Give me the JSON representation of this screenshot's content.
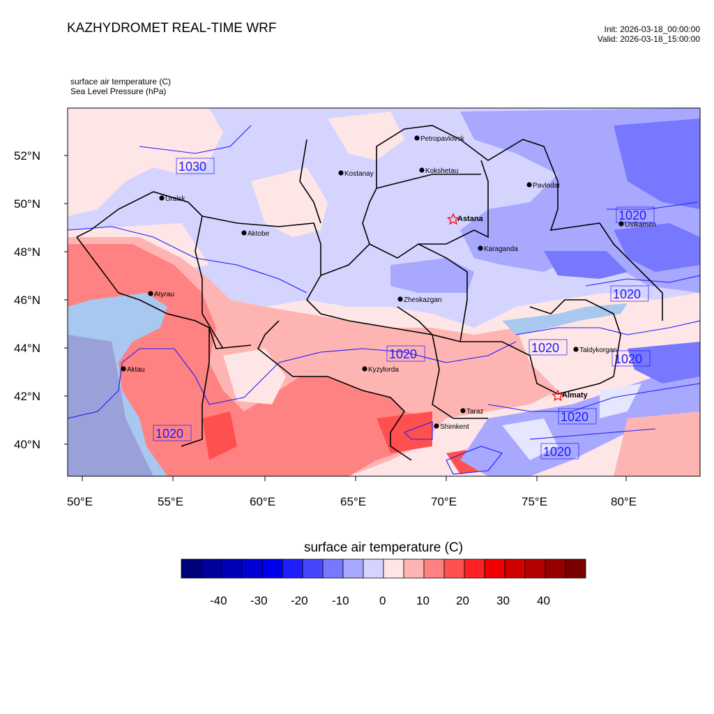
{
  "header": {
    "title": "KAZHYDROMET REAL-TIME WRF",
    "init": "Init: 2026-03-18_00:00:00",
    "valid": "Valid: 2026-03-18_15:00:00",
    "field1": "surface air temperature   (C)",
    "field2": "Sea Level Pressure   (hPa)"
  },
  "axes": {
    "lat_labels": [
      "52°N",
      "50°N",
      "48°N",
      "46°N",
      "44°N",
      "42°N",
      "40°N"
    ],
    "lon_labels": [
      "50°E",
      "55°E",
      "60°E",
      "65°E",
      "70°E",
      "75°E",
      "80°E"
    ]
  },
  "cities": [
    {
      "name": "Petropavlovsk",
      "bold": false
    },
    {
      "name": "Kostanay",
      "bold": false
    },
    {
      "name": "Kokshetau",
      "bold": false
    },
    {
      "name": "Uralsk",
      "bold": false
    },
    {
      "name": "Pavlodar",
      "bold": false
    },
    {
      "name": "Astana",
      "bold": true,
      "capital": true
    },
    {
      "name": "Ustkamen",
      "bold": false
    },
    {
      "name": "Aktobe",
      "bold": false
    },
    {
      "name": "Karaganda",
      "bold": false
    },
    {
      "name": "Atyrau",
      "bold": false
    },
    {
      "name": "Zheskazgan",
      "bold": false
    },
    {
      "name": "Taldykorgan",
      "bold": false
    },
    {
      "name": "Aktau",
      "bold": false
    },
    {
      "name": "Kyzylorda",
      "bold": false
    },
    {
      "name": "Almaty",
      "bold": true,
      "capital": true
    },
    {
      "name": "Taraz",
      "bold": false
    },
    {
      "name": "Shimkent",
      "bold": false
    }
  ],
  "isobar_labels": [
    "1030",
    "1020",
    "1020",
    "1020",
    "1020",
    "1020",
    "1020",
    "1020",
    "1020"
  ],
  "colorbar": {
    "title": "surface air temperature  (C)",
    "ticks": [
      "-40",
      "-30",
      "-20",
      "-10",
      "0",
      "10",
      "20",
      "30",
      "40"
    ],
    "colors": [
      "#00007a",
      "#00009a",
      "#0000b8",
      "#0000d4",
      "#0000f0",
      "#1e1eff",
      "#4646ff",
      "#7878ff",
      "#a8a8ff",
      "#d4d4ff",
      "#ffe6e6",
      "#ffb4b4",
      "#ff8282",
      "#ff5050",
      "#ff2222",
      "#f00000",
      "#d20000",
      "#b40000",
      "#960000",
      "#7a0000"
    ]
  },
  "colors": {
    "isobar": "#1a1aff",
    "border": "#000000",
    "capital_marker": "#ff0000"
  }
}
